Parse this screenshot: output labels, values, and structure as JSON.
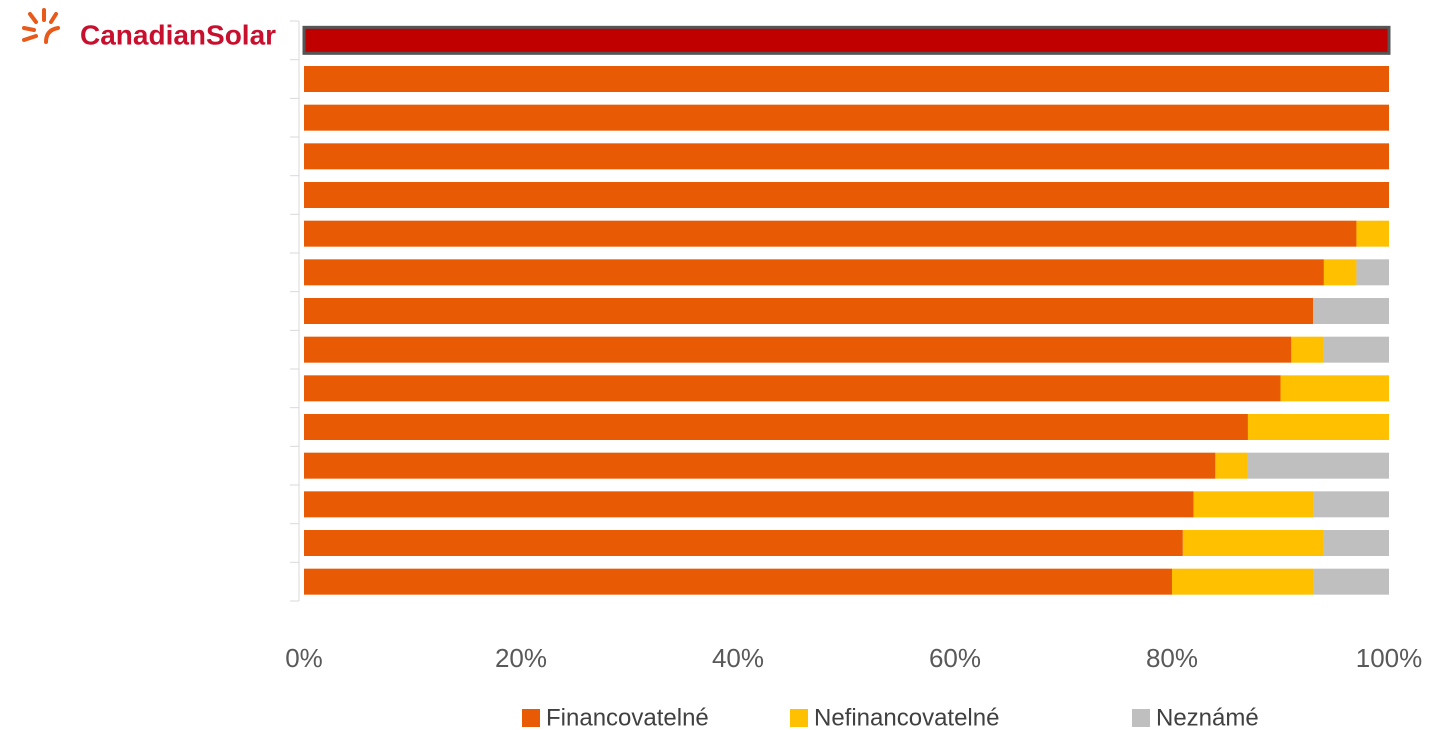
{
  "chart_data": {
    "type": "stacked_barh",
    "categories": [
      "CanadianSolar",
      null,
      null,
      null,
      null,
      null,
      null,
      null,
      null,
      null,
      null,
      null,
      null,
      null,
      null
    ],
    "series": [
      {
        "name": "Financovatelné",
        "color": "#e85b04",
        "values": [
          100,
          100,
          100,
          100,
          100,
          97,
          94,
          93,
          91,
          90,
          87,
          84,
          82,
          81,
          80
        ]
      },
      {
        "name": "Nefinancovatelné",
        "color": "#ffc000",
        "values": [
          0,
          0,
          0,
          0,
          0,
          3,
          3,
          0,
          3,
          10,
          13,
          3,
          11,
          13,
          13
        ]
      },
      {
        "name": "Neznámé",
        "color": "#bfbfbf",
        "values": [
          0,
          0,
          0,
          0,
          0,
          0,
          3,
          7,
          6,
          0,
          0,
          13,
          7,
          6,
          7
        ]
      }
    ],
    "highlight": {
      "category": "CanadianSolar",
      "color": "#c00000"
    },
    "xlim": [
      0,
      100
    ],
    "xticks": [
      {
        "value": 0,
        "label": "0%"
      },
      {
        "value": 20,
        "label": "20%"
      },
      {
        "value": 40,
        "label": "40%"
      },
      {
        "value": 60,
        "label": "60%"
      },
      {
        "value": 80,
        "label": "80%"
      },
      {
        "value": 100,
        "label": "100%"
      }
    ],
    "legend": "bottom"
  }
}
